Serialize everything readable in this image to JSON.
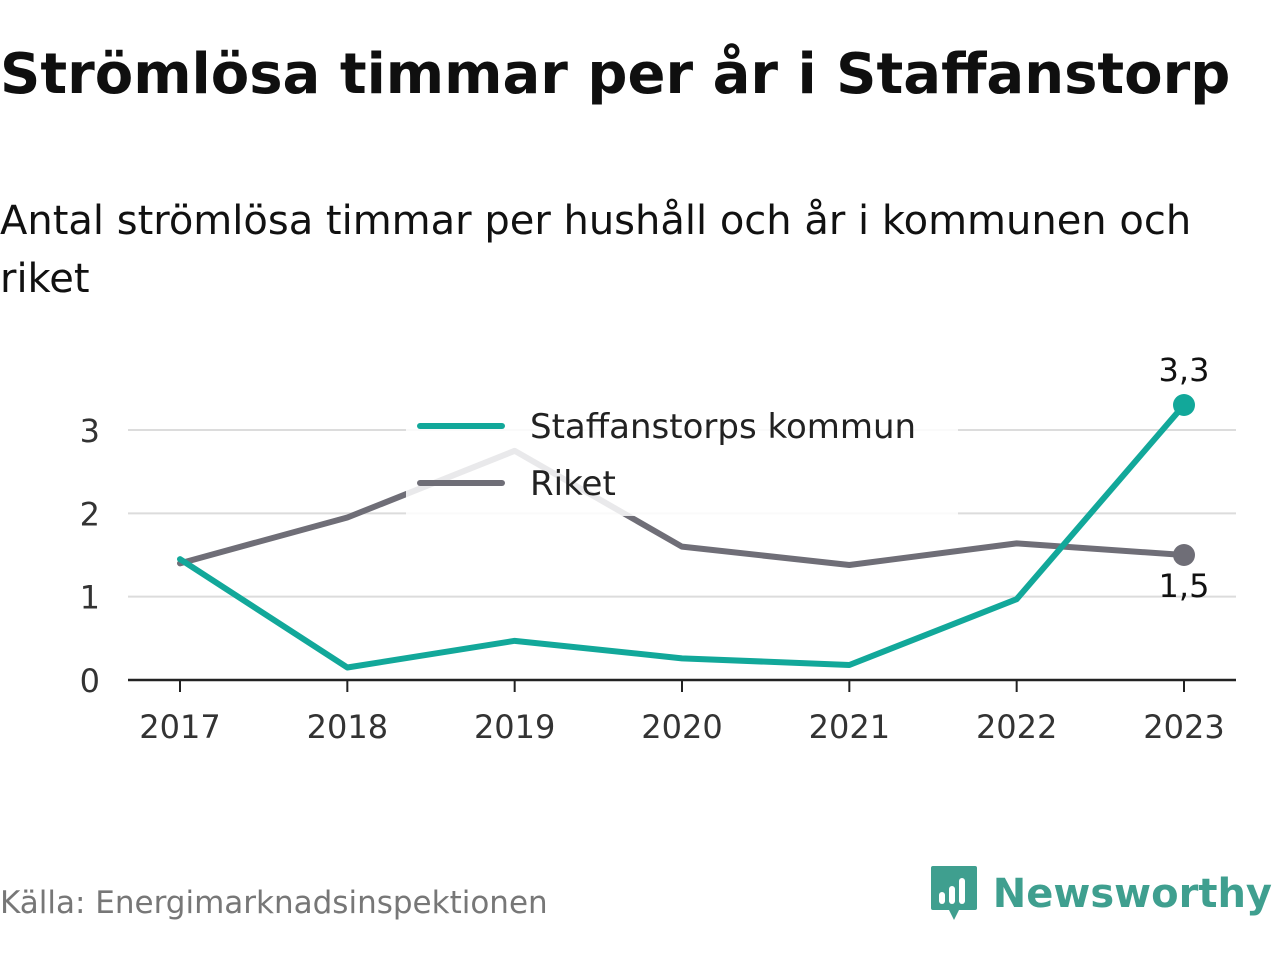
{
  "header": {
    "title": "Strömlösa timmar per år i Staffanstorp",
    "subtitle": "Antal strömlösa timmar per hushåll och år i kommunen och riket"
  },
  "footer": {
    "source": "Källa: Energimarknadsinspektionen",
    "brand": "Newsworthy",
    "brand_icon": "newsworthy-logo-icon",
    "brand_color": "#3f9f8f"
  },
  "chart_data": {
    "type": "line",
    "x": [
      "2017",
      "2018",
      "2019",
      "2020",
      "2021",
      "2022",
      "2023"
    ],
    "yticks": [
      "0",
      "1",
      "2",
      "3"
    ],
    "ylim": [
      0,
      3.6
    ],
    "grid": true,
    "legend_position": "top-center",
    "series": [
      {
        "name": "Staffanstorps kommun",
        "color": "#12a89a",
        "values": [
          1.45,
          0.15,
          0.47,
          0.26,
          0.18,
          0.97,
          3.3
        ],
        "end_label": "3,3"
      },
      {
        "name": "Riket",
        "color": "#6f6e77",
        "values": [
          1.4,
          1.95,
          2.75,
          1.6,
          1.38,
          1.64,
          1.5
        ],
        "end_label": "1,5"
      }
    ]
  }
}
